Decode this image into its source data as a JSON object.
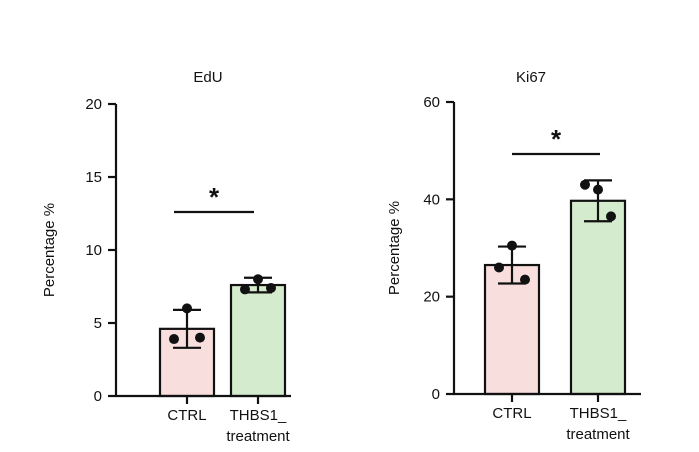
{
  "chart_data": [
    {
      "type": "bar",
      "title": "EdU",
      "ylabel": "Percentage %",
      "xlabel": "",
      "ylim": [
        0,
        20
      ],
      "yticks": [
        0,
        5,
        10,
        15,
        20
      ],
      "categories": [
        "CTRL",
        "THBS1_\ntreatment"
      ],
      "values": [
        4.6,
        7.6
      ],
      "error": [
        1.3,
        0.5
      ],
      "points": [
        [
          6.0,
          3.9,
          4.0
        ],
        [
          8.0,
          7.3,
          7.4
        ]
      ],
      "colors": [
        "#f9dede",
        "#d5ebcd"
      ],
      "significance": "*"
    },
    {
      "type": "bar",
      "title": "Ki67",
      "ylabel": "Percentage %",
      "xlabel": "",
      "ylim": [
        0,
        60
      ],
      "yticks": [
        0,
        20,
        40,
        60
      ],
      "categories": [
        "CTRL",
        "THBS1_\ntreatment"
      ],
      "values": [
        26.5,
        39.7
      ],
      "error": [
        3.8,
        4.2
      ],
      "points": [
        [
          30.5,
          26.0,
          23.5
        ],
        [
          42.0,
          43.0,
          36.5
        ]
      ],
      "colors": [
        "#f9dede",
        "#d5ebcd"
      ],
      "significance": "*"
    }
  ]
}
